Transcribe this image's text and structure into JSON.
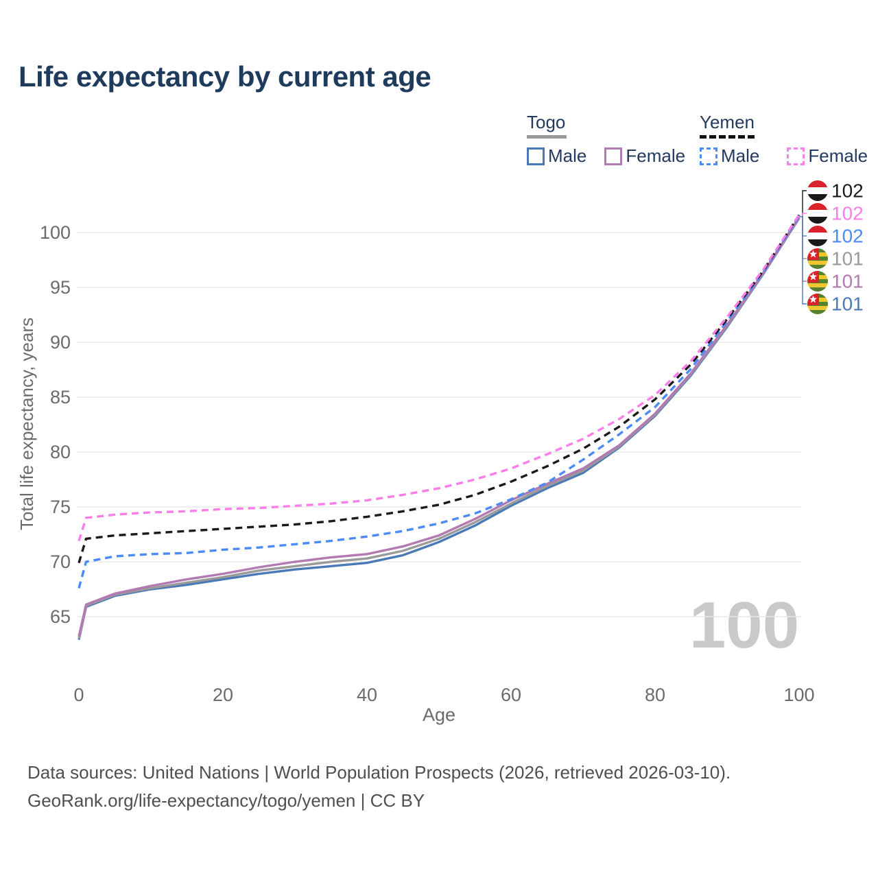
{
  "title": "Life expectancy by current age",
  "legend": {
    "groups": [
      {
        "label": "Togo",
        "line_style": "solid",
        "underline_color": "#9a9a9a",
        "items": [
          {
            "label": "Male",
            "color": "#4a79b8"
          },
          {
            "label": "Female",
            "color": "#b379b1"
          }
        ]
      },
      {
        "label": "Yemen",
        "line_style": "dashed",
        "underline_color": "#111111",
        "items": [
          {
            "label": "Male",
            "color": "#4b8bf5"
          },
          {
            "label": "Female",
            "color": "#fb7de9"
          }
        ]
      }
    ]
  },
  "watermark": "100",
  "footer": {
    "line1": "Data sources: United Nations | World Population Prospects (2026, retrieved 2026-03-10).",
    "line2": "GeoRank.org/life-expectancy/togo/yemen | CC BY"
  },
  "chart_data": {
    "type": "line",
    "title": "Life expectancy by current age",
    "xlabel": "Age",
    "ylabel": "Total life expectancy, years",
    "x_ticks": [
      0,
      20,
      40,
      60,
      80,
      100
    ],
    "y_ticks": [
      65,
      70,
      75,
      80,
      85,
      90,
      95,
      100
    ],
    "xlim": [
      0,
      100
    ],
    "ylim": [
      62,
      102
    ],
    "grid": "horizontal-only",
    "grid_color": "#e9e9e9",
    "axis_text_color": "#6b6b6b",
    "watermark_color": "#c9c9c9",
    "x": [
      0,
      1,
      5,
      10,
      15,
      20,
      25,
      30,
      35,
      40,
      45,
      50,
      55,
      60,
      65,
      70,
      75,
      80,
      85,
      90,
      95,
      100
    ],
    "series": [
      {
        "name": "Togo Male",
        "country": "Togo",
        "sex": "male",
        "color": "#4a79b8",
        "dash": false,
        "values": [
          62.9,
          65.9,
          66.9,
          67.5,
          67.9,
          68.4,
          68.9,
          69.3,
          69.6,
          69.9,
          70.6,
          71.8,
          73.3,
          75.1,
          76.7,
          78.1,
          80.4,
          83.3,
          87.0,
          91.4,
          96.2,
          101.3
        ]
      },
      {
        "name": "Togo Total",
        "country": "Togo",
        "sex": "total",
        "color": "#9a9a9a",
        "dash": false,
        "values": [
          63.0,
          66.0,
          67.0,
          67.6,
          68.1,
          68.6,
          69.2,
          69.6,
          70.0,
          70.3,
          71.0,
          72.1,
          73.6,
          75.3,
          76.9,
          78.3,
          80.5,
          83.4,
          87.1,
          91.5,
          96.25,
          101.35
        ]
      },
      {
        "name": "Togo Female",
        "country": "Togo",
        "sex": "female",
        "color": "#b379b1",
        "dash": false,
        "values": [
          63.2,
          66.1,
          67.1,
          67.8,
          68.4,
          68.9,
          69.5,
          70.0,
          70.4,
          70.7,
          71.4,
          72.4,
          73.9,
          75.6,
          77.1,
          78.5,
          80.6,
          83.5,
          87.2,
          91.6,
          96.3,
          101.4
        ]
      },
      {
        "name": "Yemen Male",
        "country": "Yemen",
        "sex": "male",
        "color": "#4b8bf5",
        "dash": true,
        "values": [
          67.6,
          70.0,
          70.5,
          70.7,
          70.8,
          71.1,
          71.3,
          71.6,
          71.9,
          72.3,
          72.8,
          73.5,
          74.4,
          75.7,
          77.2,
          79.3,
          81.6,
          84.1,
          87.6,
          91.9,
          96.4,
          101.5
        ]
      },
      {
        "name": "Yemen Total",
        "country": "Yemen",
        "sex": "total",
        "color": "#1a1a1a",
        "dash": true,
        "values": [
          69.9,
          72.1,
          72.4,
          72.6,
          72.8,
          73.0,
          73.2,
          73.4,
          73.7,
          74.1,
          74.6,
          75.2,
          76.1,
          77.3,
          78.7,
          80.3,
          82.3,
          84.8,
          88.0,
          92.1,
          96.5,
          101.6
        ]
      },
      {
        "name": "Yemen Female",
        "country": "Yemen",
        "sex": "female",
        "color": "#fb7de9",
        "dash": true,
        "values": [
          71.9,
          74.0,
          74.3,
          74.5,
          74.6,
          74.8,
          74.9,
          75.1,
          75.3,
          75.6,
          76.1,
          76.7,
          77.5,
          78.5,
          79.8,
          81.2,
          83.0,
          85.2,
          88.3,
          92.3,
          96.6,
          101.6
        ]
      }
    ],
    "end_labels": [
      {
        "value": "102",
        "color": "#1a1a1a",
        "flag": "yemen",
        "series": "Yemen Total"
      },
      {
        "value": "102",
        "color": "#fb7de9",
        "flag": "yemen",
        "series": "Yemen Female"
      },
      {
        "value": "102",
        "color": "#4b8bf5",
        "flag": "yemen",
        "series": "Yemen Male"
      },
      {
        "value": "101",
        "color": "#9a9a9a",
        "flag": "togo",
        "series": "Togo Total"
      },
      {
        "value": "101",
        "color": "#b379b1",
        "flag": "togo",
        "series": "Togo Female"
      },
      {
        "value": "101",
        "color": "#4a79b8",
        "flag": "togo",
        "series": "Togo Male"
      }
    ],
    "flag_colors": {
      "yemen": {
        "red": "#d8232a",
        "white": "#ffffff",
        "black": "#1a1a1a"
      },
      "togo": {
        "green": "#55822e",
        "yellow": "#eec62f",
        "red": "#d8232a",
        "star": "#ffffff"
      }
    }
  }
}
